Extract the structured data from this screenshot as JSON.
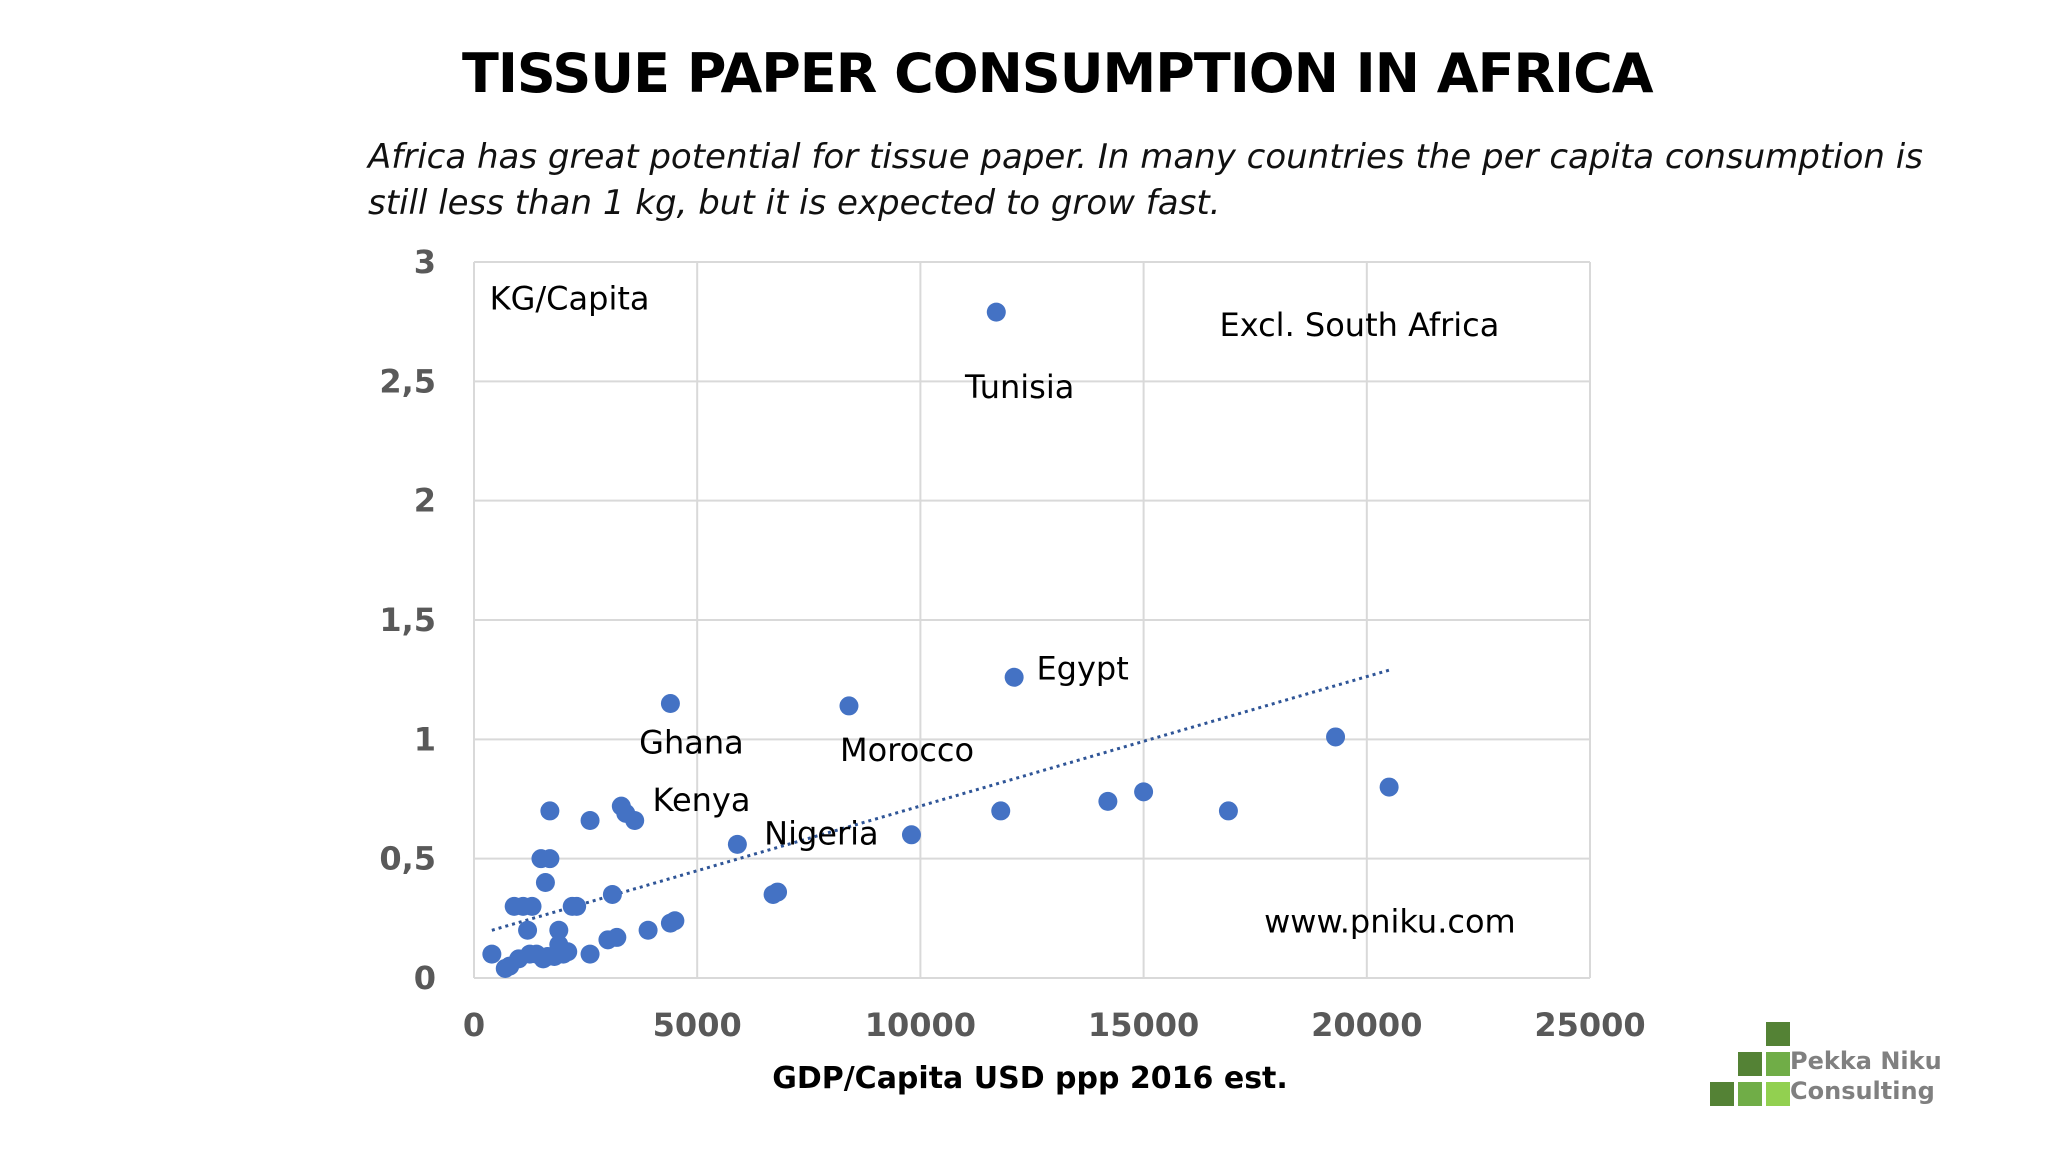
{
  "title": "TISSUE PAPER CONSUMPTION IN AFRICA",
  "subtitle_lines": [
    "Africa has great potential for tissue paper. In many countries the per capita consumption is",
    "still less than 1 kg, but it is expected to grow fast."
  ],
  "logo": {
    "line1": "Pekka Niku",
    "line2": "Consulting"
  },
  "colors": {
    "points": "#4472C4",
    "trend": "#2F5597",
    "grid": "#D9D9D9",
    "tick_text": "#595959"
  },
  "chart_data": {
    "type": "scatter",
    "title": "TISSUE PAPER CONSUMPTION IN AFRICA",
    "xlabel": "GDP/Capita USD ppp 2016 est.",
    "ylabel": "KG/Capita",
    "xlim": [
      0,
      25000
    ],
    "ylim": [
      0,
      3
    ],
    "xticks": [
      0,
      5000,
      10000,
      15000,
      20000,
      25000
    ],
    "xtick_labels": [
      "0",
      "5000",
      "10000",
      "15000",
      "20000",
      "25000"
    ],
    "yticks": [
      0,
      0.5,
      1,
      1.5,
      2,
      2.5,
      3
    ],
    "ytick_labels": [
      "0",
      "0,5",
      "1",
      "1,5",
      "2",
      "2,5",
      "3"
    ],
    "grid": true,
    "points": [
      [
        400,
        0.1
      ],
      [
        700,
        0.04
      ],
      [
        800,
        0.05
      ],
      [
        900,
        0.3
      ],
      [
        1000,
        0.08
      ],
      [
        1100,
        0.3
      ],
      [
        1200,
        0.2
      ],
      [
        1250,
        0.1
      ],
      [
        1300,
        0.3
      ],
      [
        1400,
        0.1
      ],
      [
        1500,
        0.5
      ],
      [
        1550,
        0.08
      ],
      [
        1600,
        0.4
      ],
      [
        1650,
        0.09
      ],
      [
        1700,
        0.5
      ],
      [
        1700,
        0.7
      ],
      [
        1800,
        0.09
      ],
      [
        1900,
        0.2
      ],
      [
        1900,
        0.14
      ],
      [
        2000,
        0.1
      ],
      [
        2100,
        0.11
      ],
      [
        2200,
        0.3
      ],
      [
        2300,
        0.3
      ],
      [
        2600,
        0.1
      ],
      [
        2600,
        0.66
      ],
      [
        3000,
        0.16
      ],
      [
        3100,
        0.35
      ],
      [
        3200,
        0.17
      ],
      [
        3300,
        0.72
      ],
      [
        3400,
        0.69
      ],
      [
        3600,
        0.66
      ],
      [
        3900,
        0.2
      ],
      [
        4400,
        0.23
      ],
      [
        4500,
        0.24
      ],
      [
        4400,
        1.15
      ],
      [
        5900,
        0.56
      ],
      [
        6700,
        0.35
      ],
      [
        6800,
        0.36
      ],
      [
        8400,
        1.14
      ],
      [
        9800,
        0.6
      ],
      [
        11700,
        2.79
      ],
      [
        11800,
        0.7
      ],
      [
        12100,
        1.26
      ],
      [
        14200,
        0.74
      ],
      [
        15000,
        0.78
      ],
      [
        16900,
        0.7
      ],
      [
        19300,
        1.01
      ],
      [
        20500,
        0.8
      ]
    ],
    "trendline": {
      "x": [
        400,
        20500
      ],
      "y": [
        0.2,
        1.29
      ]
    },
    "annotations": [
      {
        "text": "KG/Capita",
        "x": 350,
        "y": 2.8
      },
      {
        "text": "Excl. South Africa",
        "x": 16700,
        "y": 2.69
      },
      {
        "text": "Tunisia",
        "x": 11000,
        "y": 2.43
      },
      {
        "text": "Egypt",
        "x": 12600,
        "y": 1.25
      },
      {
        "text": "Ghana",
        "x": 3700,
        "y": 0.94
      },
      {
        "text": "Morocco",
        "x": 8200,
        "y": 0.91
      },
      {
        "text": "Kenya",
        "x": 4000,
        "y": 0.7
      },
      {
        "text": "Nigeria",
        "x": 6500,
        "y": 0.56
      },
      {
        "text": "www.pniku.com",
        "x": 17700,
        "y": 0.19
      }
    ]
  }
}
